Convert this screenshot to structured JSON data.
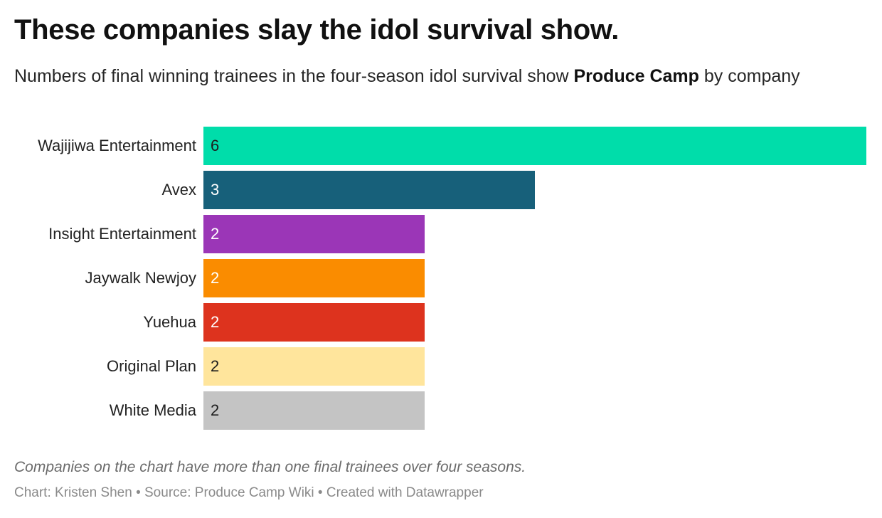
{
  "header": {
    "title": "These companies slay the idol survival show.",
    "subtitle_pre": "Numbers of final winning trainees in the four-season idol survival show ",
    "subtitle_bold": "Produce Camp",
    "subtitle_post": " by company"
  },
  "chart_data": {
    "type": "bar",
    "orientation": "horizontal",
    "categories": [
      "Wajijiwa Entertainment",
      "Avex",
      "Insight Entertainment",
      "Jaywalk Newjoy",
      "Yuehua",
      "Original Plan",
      "White Media"
    ],
    "values": [
      6,
      3,
      2,
      2,
      2,
      2,
      2
    ],
    "colors": [
      "#00ddaa",
      "#17607a",
      "#9b36b7",
      "#fa8c00",
      "#dd331e",
      "#ffe59c",
      "#c4c4c4"
    ],
    "value_label_colors": [
      "#1d1d1d",
      "#ffffff",
      "#ffffff",
      "#ffffff",
      "#ffffff",
      "#1d1d1d",
      "#1d1d1d"
    ],
    "xlim": [
      0,
      6
    ],
    "grid": false
  },
  "footer": {
    "note": "Companies on the chart have more than one final trainees over four seasons.",
    "credit": "Chart: Kristen Shen • Source: Produce Camp Wiki • Created with Datawrapper"
  }
}
